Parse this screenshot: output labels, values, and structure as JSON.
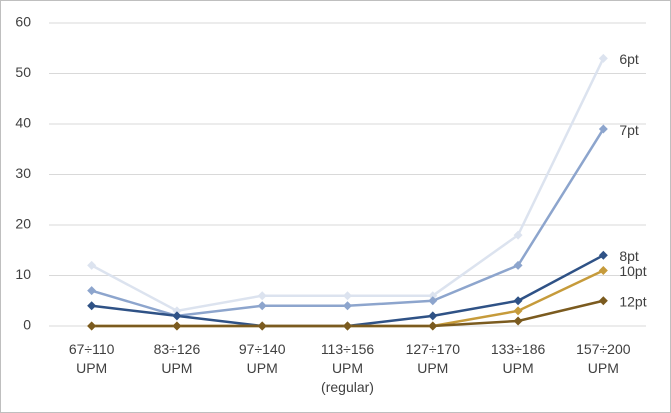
{
  "chart_data": {
    "type": "line",
    "categories": [
      "67÷110 UPM",
      "83÷126 UPM",
      "97÷140 UPM",
      "113÷156 UPM (regular)",
      "127÷170 UPM",
      "133÷186 UPM",
      "157÷200 UPM"
    ],
    "series": [
      {
        "name": "6pt",
        "color": "#dce3ef",
        "values": [
          12,
          3,
          6,
          6,
          6,
          18,
          53
        ]
      },
      {
        "name": "7pt",
        "color": "#8da5cd",
        "values": [
          7,
          2,
          4,
          4,
          5,
          12,
          39
        ]
      },
      {
        "name": "8pt",
        "color": "#2f5286",
        "values": [
          4,
          2,
          0,
          0,
          2,
          5,
          14
        ]
      },
      {
        "name": "10pt",
        "color": "#c69b3b",
        "values": [
          0,
          0,
          0,
          0,
          0,
          3,
          11
        ]
      },
      {
        "name": "12pt",
        "color": "#7b5b1f",
        "values": [
          0,
          0,
          0,
          0,
          0,
          1,
          5
        ]
      }
    ],
    "ylim": [
      0,
      60
    ],
    "yticks": [
      0,
      10,
      20,
      30,
      40,
      50,
      60
    ],
    "grid": true
  }
}
